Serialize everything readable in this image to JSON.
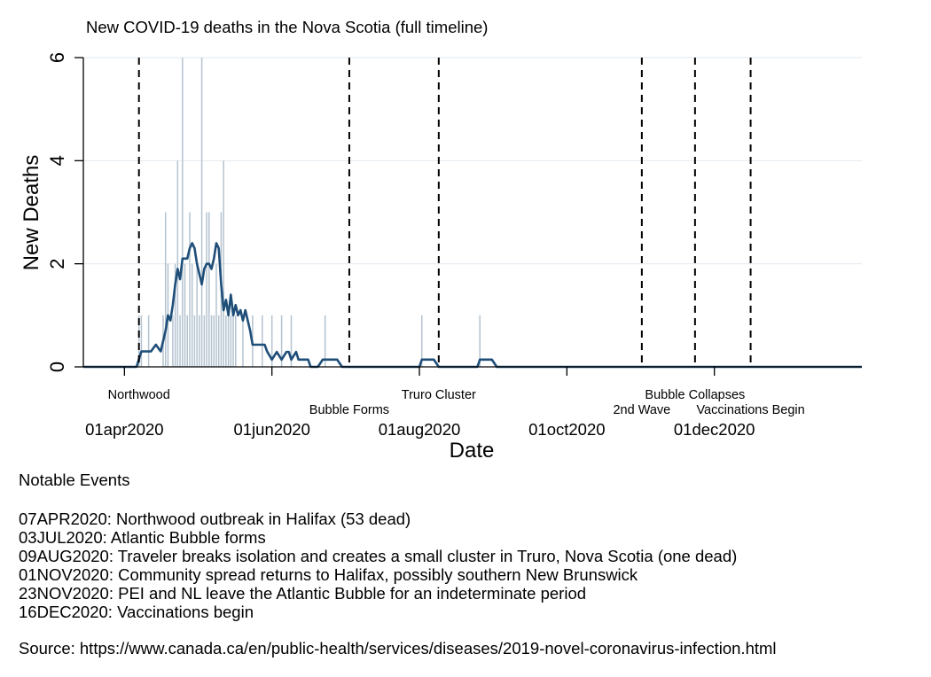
{
  "chart_data": {
    "type": "bar+line",
    "title": "New COVID-19 deaths in the Nova Scotia (full timeline)",
    "xlabel": "Date",
    "ylabel": "New Deaths",
    "x_axis": {
      "type": "date",
      "min": "2020-03-15",
      "max": "2021-01-31",
      "ticks": [
        "2020-04-01",
        "2020-06-01",
        "2020-08-01",
        "2020-10-01",
        "2020-12-01"
      ],
      "tick_labels": [
        "01apr2020",
        "01jun2020",
        "01aug2020",
        "01oct2020",
        "01dec2020"
      ]
    },
    "y_axis": {
      "min": 0,
      "max": 6,
      "ticks": [
        0,
        2,
        4,
        6
      ],
      "tick_labels": [
        "0",
        "2",
        "4",
        "6"
      ],
      "grid": true
    },
    "series": [
      {
        "kind": "bar",
        "color": "#b4c3d0",
        "points": [
          [
            "2020-04-07",
            1
          ],
          [
            "2020-04-08",
            1
          ],
          [
            "2020-04-11",
            1
          ],
          [
            "2020-04-17",
            1
          ],
          [
            "2020-04-18",
            3
          ],
          [
            "2020-04-19",
            2
          ],
          [
            "2020-04-21",
            1
          ],
          [
            "2020-04-22",
            2
          ],
          [
            "2020-04-23",
            4
          ],
          [
            "2020-04-24",
            1
          ],
          [
            "2020-04-25",
            6
          ],
          [
            "2020-04-26",
            2
          ],
          [
            "2020-04-27",
            1
          ],
          [
            "2020-04-28",
            3
          ],
          [
            "2020-04-29",
            2
          ],
          [
            "2020-04-30",
            1
          ],
          [
            "2020-05-01",
            2
          ],
          [
            "2020-05-02",
            1
          ],
          [
            "2020-05-03",
            6
          ],
          [
            "2020-05-04",
            1
          ],
          [
            "2020-05-05",
            3
          ],
          [
            "2020-05-06",
            3
          ],
          [
            "2020-05-07",
            1
          ],
          [
            "2020-05-08",
            1
          ],
          [
            "2020-05-09",
            2
          ],
          [
            "2020-05-10",
            1
          ],
          [
            "2020-05-11",
            3
          ],
          [
            "2020-05-12",
            4
          ],
          [
            "2020-05-13",
            1
          ],
          [
            "2020-05-14",
            1
          ],
          [
            "2020-05-15",
            1
          ],
          [
            "2020-05-16",
            1
          ],
          [
            "2020-05-17",
            1
          ],
          [
            "2020-05-20",
            1
          ],
          [
            "2020-05-24",
            1
          ],
          [
            "2020-05-28",
            1
          ],
          [
            "2020-06-01",
            1
          ],
          [
            "2020-06-05",
            1
          ],
          [
            "2020-06-09",
            1
          ],
          [
            "2020-06-23",
            1
          ],
          [
            "2020-08-02",
            1
          ],
          [
            "2020-08-26",
            1
          ]
        ]
      },
      {
        "kind": "line",
        "color": "#1f4e79",
        "points": [
          [
            "2020-03-15",
            0
          ],
          [
            "2020-04-06",
            0
          ],
          [
            "2020-04-08",
            0.3
          ],
          [
            "2020-04-12",
            0.3
          ],
          [
            "2020-04-14",
            0.43
          ],
          [
            "2020-04-16",
            0.3
          ],
          [
            "2020-04-18",
            0.7
          ],
          [
            "2020-04-19",
            1
          ],
          [
            "2020-04-20",
            0.9
          ],
          [
            "2020-04-21",
            1.2
          ],
          [
            "2020-04-22",
            1.6
          ],
          [
            "2020-04-23",
            1.9
          ],
          [
            "2020-04-24",
            1.7
          ],
          [
            "2020-04-25",
            2.1
          ],
          [
            "2020-04-27",
            2.1
          ],
          [
            "2020-04-28",
            2.3
          ],
          [
            "2020-04-29",
            2.4
          ],
          [
            "2020-04-30",
            2.3
          ],
          [
            "2020-05-01",
            2.0
          ],
          [
            "2020-05-02",
            1.8
          ],
          [
            "2020-05-03",
            1.6
          ],
          [
            "2020-05-04",
            1.9
          ],
          [
            "2020-05-05",
            2.0
          ],
          [
            "2020-05-06",
            2.0
          ],
          [
            "2020-05-07",
            1.9
          ],
          [
            "2020-05-08",
            2.1
          ],
          [
            "2020-05-09",
            2.4
          ],
          [
            "2020-05-10",
            2.3
          ],
          [
            "2020-05-11",
            1.6
          ],
          [
            "2020-05-12",
            1.1
          ],
          [
            "2020-05-13",
            1.3
          ],
          [
            "2020-05-14",
            1.0
          ],
          [
            "2020-05-15",
            1.4
          ],
          [
            "2020-05-16",
            1.0
          ],
          [
            "2020-05-17",
            1.2
          ],
          [
            "2020-05-18",
            1.0
          ],
          [
            "2020-05-19",
            1.1
          ],
          [
            "2020-05-20",
            0.9
          ],
          [
            "2020-05-21",
            1.1
          ],
          [
            "2020-05-22",
            0.9
          ],
          [
            "2020-05-23",
            0.7
          ],
          [
            "2020-05-24",
            0.43
          ],
          [
            "2020-05-29",
            0.43
          ],
          [
            "2020-05-30",
            0.3
          ],
          [
            "2020-06-01",
            0.14
          ],
          [
            "2020-06-03",
            0.29
          ],
          [
            "2020-06-05",
            0.14
          ],
          [
            "2020-06-07",
            0.29
          ],
          [
            "2020-06-08",
            0.29
          ],
          [
            "2020-06-09",
            0.14
          ],
          [
            "2020-06-11",
            0.29
          ],
          [
            "2020-06-12",
            0.14
          ],
          [
            "2020-06-13",
            0.14
          ],
          [
            "2020-06-16",
            0.14
          ],
          [
            "2020-06-17",
            0
          ],
          [
            "2020-06-20",
            0
          ],
          [
            "2020-06-22",
            0.14
          ],
          [
            "2020-06-28",
            0.14
          ],
          [
            "2020-06-30",
            0
          ],
          [
            "2020-08-01",
            0
          ],
          [
            "2020-08-02",
            0.14
          ],
          [
            "2020-08-07",
            0.14
          ],
          [
            "2020-08-09",
            0
          ],
          [
            "2020-08-25",
            0
          ],
          [
            "2020-08-26",
            0.14
          ],
          [
            "2020-08-31",
            0.14
          ],
          [
            "2020-09-02",
            0
          ],
          [
            "2021-01-31",
            0
          ]
        ]
      }
    ],
    "event_lines": [
      {
        "date": "2020-04-07",
        "label": "Northwood",
        "row": 1
      },
      {
        "date": "2020-07-03",
        "label": "Bubble Forms",
        "row": 2
      },
      {
        "date": "2020-08-09",
        "label": "Truro Cluster",
        "row": 1
      },
      {
        "date": "2020-11-01",
        "label": "2nd Wave",
        "row": 2
      },
      {
        "date": "2020-11-23",
        "label": "Bubble Collapses",
        "row": 1
      },
      {
        "date": "2020-12-16",
        "label": "Vaccinations Begin",
        "row": 2
      }
    ]
  },
  "notes": {
    "heading": "Notable Events",
    "events": [
      "07APR2020: Northwood outbreak in Halifax (53 dead)",
      "03JUL2020: Atlantic Bubble forms",
      "09AUG2020: Traveler breaks isolation and creates a small cluster in Truro, Nova Scotia (one dead)",
      "01NOV2020: Community spread returns to Halifax, possibly southern New Brunswick",
      "23NOV2020: PEI and NL leave the Atlantic Bubble for an indeterminate period",
      "16DEC2020: Vaccinations begin"
    ],
    "source": "Source: https://www.canada.ca/en/public-health/services/diseases/2019-novel-coronavirus-infection.html"
  }
}
